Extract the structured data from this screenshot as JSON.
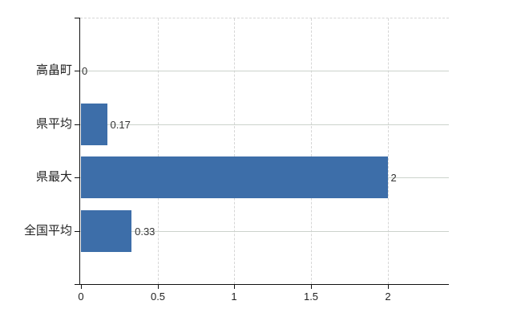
{
  "chart_data": {
    "type": "bar",
    "orientation": "horizontal",
    "title": "",
    "categories": [
      "高畠町",
      "県平均",
      "県最大",
      "全国平均"
    ],
    "values": [
      0,
      0.17,
      2,
      0.33
    ],
    "value_labels": [
      "0",
      "0.17",
      "2",
      "0.33"
    ],
    "xlim": [
      0,
      2.4
    ],
    "xticks": [
      0,
      0.5,
      1,
      1.5,
      2
    ],
    "xtick_labels": [
      "0",
      "0.5",
      "1",
      "1.5",
      "2"
    ],
    "grid": {
      "horizontal_lines": "solid, one per category center",
      "vertical_lines": "dashed, at ticks 0.5 1 1.5 2",
      "top_border": "dashed"
    },
    "legend": null
  },
  "colors": {
    "bar": "#3d6ea9",
    "axis": "#111111",
    "h_gridline": "#ccd3cc",
    "v_gridline": "#d6d6d6",
    "category_text": "#222222",
    "value_text": "#333333",
    "tick_text": "#222222",
    "background": "#ffffff"
  }
}
